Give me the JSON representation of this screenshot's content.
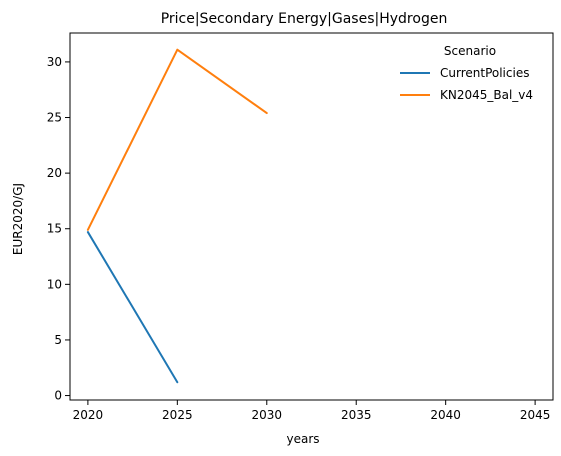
{
  "chart_data": {
    "type": "line",
    "title": "Price|Secondary Energy|Gases|Hydrogen",
    "xlabel": "years",
    "ylabel": "EUR2020/GJ",
    "xlim": [
      2019,
      2046
    ],
    "ylim": [
      -0.4,
      32.6
    ],
    "x_ticks": [
      2020,
      2025,
      2030,
      2035,
      2040,
      2045
    ],
    "y_ticks": [
      0,
      5,
      10,
      15,
      20,
      25,
      30
    ],
    "grid": false,
    "legend": {
      "title": "Scenario",
      "position": "top-right"
    },
    "series": [
      {
        "name": "CurrentPolicies",
        "color": "#1f77b4",
        "x": [
          2020,
          2025
        ],
        "y": [
          14.7,
          1.2
        ]
      },
      {
        "name": "KN2045_Bal_v4",
        "color": "#ff7f0e",
        "x": [
          2020,
          2025,
          2030
        ],
        "y": [
          14.9,
          31.1,
          25.4
        ]
      }
    ]
  }
}
